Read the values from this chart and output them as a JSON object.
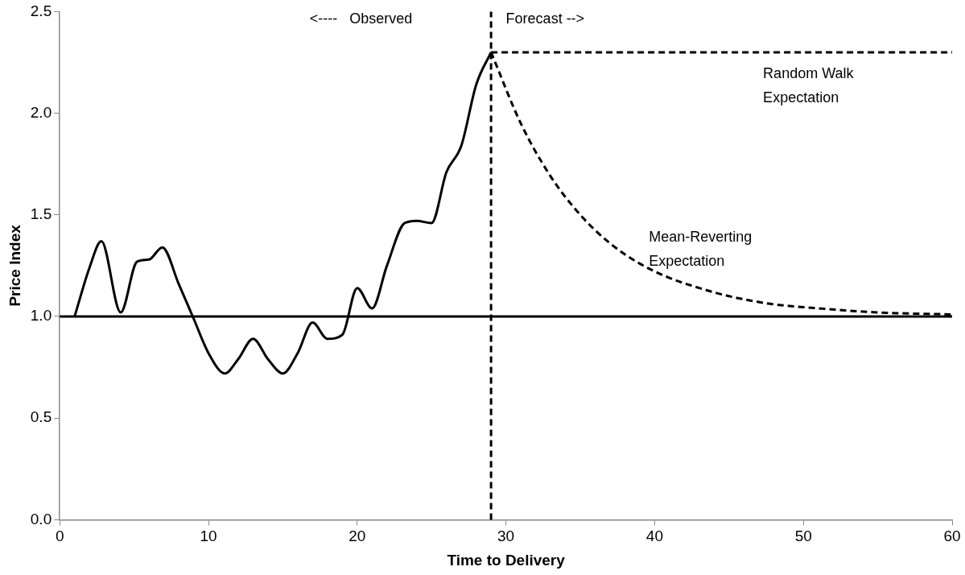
{
  "chart_data": {
    "type": "line",
    "xlabel": "Time to Delivery",
    "ylabel": "Price Index",
    "xlim": [
      0,
      60
    ],
    "xticks": [
      0,
      10,
      20,
      30,
      40,
      50,
      60
    ],
    "ylim": [
      0,
      2.5
    ],
    "yticks": [
      {
        "value": 0,
        "label": "0.0"
      },
      {
        "value": 0.5,
        "label": "0.5"
      },
      {
        "value": 1,
        "label": "1.0"
      },
      {
        "value": 1.5,
        "label": "1.5"
      },
      {
        "value": 2,
        "label": "2.0"
      },
      {
        "value": 2.5,
        "label": "2.5"
      }
    ],
    "grid": false,
    "legend": false,
    "marker": "none",
    "series": [
      {
        "color": "#000000",
        "line_style": "solid",
        "x": [
          1,
          2,
          2.8,
          4.1,
          5.2,
          6,
          6.9,
          8,
          9,
          10,
          11.1,
          12,
          13,
          14,
          15,
          16,
          17,
          18,
          19,
          20,
          21,
          22,
          23.2,
          24,
          25,
          26,
          27,
          28,
          29
        ],
        "values": [
          1.0,
          1.24,
          1.37,
          1.02,
          1.27,
          1.28,
          1.34,
          1.16,
          0.99,
          0.82,
          0.72,
          0.79,
          0.89,
          0.79,
          0.72,
          0.82,
          0.97,
          0.89,
          0.91,
          1.14,
          1.04,
          1.25,
          1.46,
          1.47,
          1.46,
          1.71,
          1.84,
          2.14,
          2.3
        ]
      },
      {
        "name": "Mean-Reverting\nExpectation",
        "color": "#000000",
        "line_style": "dashed",
        "x": [
          29,
          31,
          33,
          35,
          37,
          39,
          41,
          43,
          45,
          48,
          51,
          55,
          60
        ],
        "values": [
          2.3,
          1.95,
          1.69,
          1.5,
          1.36,
          1.26,
          1.19,
          1.14,
          1.1,
          1.06,
          1.04,
          1.02,
          1.01
        ]
      },
      {
        "name": "Random Walk\nExpectation",
        "color": "#000000",
        "line_style": "dashed",
        "x": [
          29,
          60
        ],
        "values": [
          2.3,
          2.3
        ]
      }
    ],
    "ref_lines": [
      {
        "axis": "y",
        "value": 1,
        "color": "#000000",
        "line_style": "solid"
      },
      {
        "axis": "x",
        "value": 29,
        "color": "#000000",
        "line_style": "dashed"
      }
    ],
    "annotations": [
      "<----   Observed",
      "Forecast -->"
    ]
  }
}
